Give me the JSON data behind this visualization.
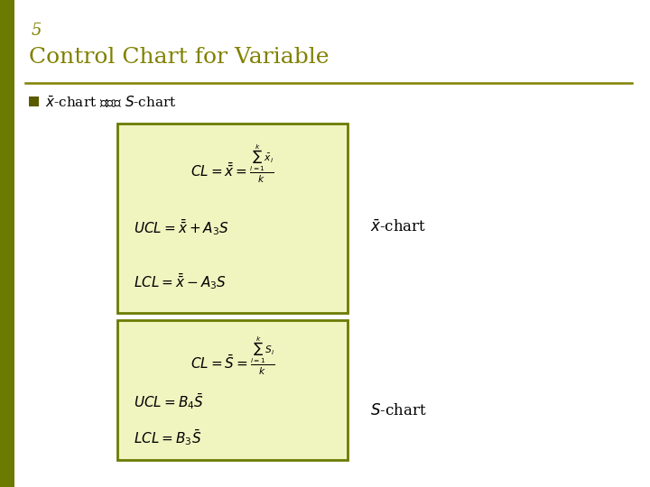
{
  "background_color": "#ffffff",
  "slide_number": "5",
  "slide_number_color": "#808000",
  "title": "Control Chart for Variable",
  "title_color": "#808000",
  "title_fontsize": 18,
  "separator_color": "#808000",
  "bullet_color": "#000000",
  "bullet_fontsize": 11,
  "box1_facecolor": "#f0f5c0",
  "box1_edgecolor": "#6b7a00",
  "box2_facecolor": "#f0f5c0",
  "box2_edgecolor": "#6b7a00",
  "left_bar_color": "#6b7a00",
  "xbar_chart_label": "$\\bar{x}$-chart",
  "s_chart_label": "$S$-chart",
  "formula_color": "#000000",
  "formula_fontsize": 11
}
